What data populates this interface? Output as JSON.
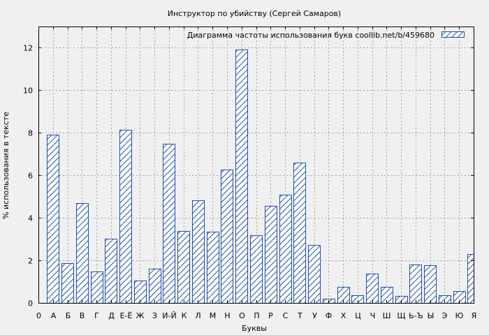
{
  "chart_data": {
    "type": "bar",
    "title": "Инструктор по убийству (Сергей Самаров)",
    "xlabel": "Буквы",
    "ylabel": "% использования в тексте",
    "legend": {
      "text": "Диаграмма частоты использования букв  coollib.net/b/459680",
      "placement": "top-right"
    },
    "ylim": [
      0,
      13
    ],
    "yticks": [
      0,
      2,
      4,
      6,
      8,
      10,
      12
    ],
    "grid": true,
    "bar_color": "#1f4fa8",
    "categories": [
      "0",
      "А",
      "Б",
      "В",
      "Г",
      "Д",
      "Е-Ё",
      "Ж",
      "З",
      "И-Й",
      "К",
      "Л",
      "М",
      "Н",
      "О",
      "П",
      "Р",
      "С",
      "Т",
      "У",
      "Ф",
      "Х",
      "Ц",
      "Ч",
      "Ш",
      "Щ",
      "Ь-Ъ",
      "Ы",
      "Э",
      "Ю",
      "Я"
    ],
    "values": [
      0,
      7.9,
      1.88,
      4.7,
      1.48,
      3.02,
      8.15,
      1.05,
      1.6,
      7.47,
      3.38,
      4.82,
      3.35,
      6.27,
      11.92,
      3.18,
      4.57,
      5.1,
      6.6,
      2.74,
      0.2,
      0.75,
      0.37,
      1.37,
      0.75,
      0.33,
      1.81,
      1.77,
      0.36,
      0.55,
      2.3
    ]
  }
}
